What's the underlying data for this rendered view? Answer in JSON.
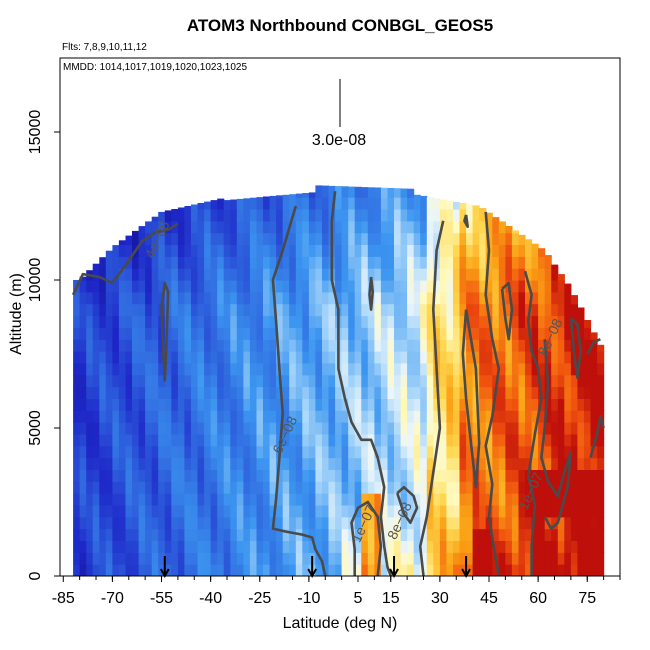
{
  "title": "ATOM3 Northbound CONBGL_GEOS5",
  "flights_label": "Flts: 7,8,9,10,11,12",
  "mmdd_label": "MMDD: 1014,1017,1019,1020,1023,1025",
  "chart_data": {
    "type": "heatmap",
    "title": "ATOM3 Northbound CONBGL_GEOS5",
    "xlabel": "Latitude (deg N)",
    "ylabel": "Altitude (m)",
    "xlim": [
      -86,
      85
    ],
    "ylim": [
      0,
      17500
    ],
    "x_ticks": [
      -85,
      -70,
      -55,
      -40,
      -25,
      -10,
      5,
      15,
      30,
      45,
      60,
      75
    ],
    "y_ticks": [
      0,
      5000,
      10000,
      15000
    ],
    "scale_label": "3.0e-08",
    "contour_labels": [
      {
        "text": "4e−08",
        "lat": -55,
        "alt": 11300
      },
      {
        "text": "6e−08",
        "lat": -16,
        "alt": 4700
      },
      {
        "text": "8e−08",
        "lat": 19,
        "alt": 1800
      },
      {
        "text": "8e−08",
        "lat": 65,
        "alt": 8000
      },
      {
        "text": "1e−07",
        "lat": 59,
        "alt": 2800
      },
      {
        "text": "1e−07",
        "lat": 8,
        "alt": 1700
      }
    ],
    "flight_markers_lat": [
      -54,
      -9,
      16,
      38
    ],
    "grid": false
  }
}
